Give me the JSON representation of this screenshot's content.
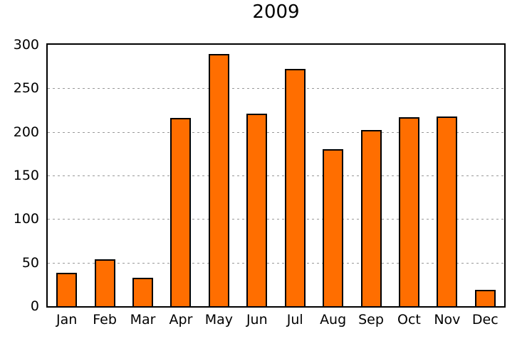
{
  "page": {
    "background": "#ffffff"
  },
  "chart_data": {
    "type": "bar",
    "title": "2009",
    "categories": [
      "Jan",
      "Feb",
      "Mar",
      "Apr",
      "May",
      "Jun",
      "Jul",
      "Aug",
      "Sep",
      "Oct",
      "Nov",
      "Dec"
    ],
    "values": [
      38,
      54,
      33,
      216,
      289,
      221,
      272,
      180,
      202,
      217,
      218,
      19
    ],
    "xlabel": "",
    "ylabel": "",
    "ylim": [
      0,
      300
    ],
    "yticks": [
      0,
      50,
      100,
      150,
      200,
      250,
      300
    ],
    "grid": "horizontal-dotted",
    "legend_position": "none",
    "bar_fill_color": "#ff6e00",
    "bar_border_color": "#000000",
    "grid_color": "#999999",
    "axis_frame_color": "#000000",
    "text_color": "#000000"
  }
}
